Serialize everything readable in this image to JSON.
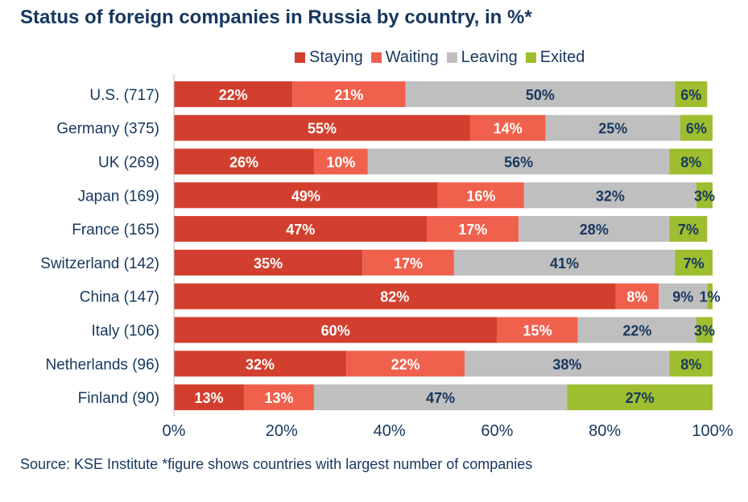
{
  "title": "Status of foreign companies in Russia by country, in %*",
  "source": "Source: KSE Institute *figure shows countries with largest number of companies",
  "chart_data": {
    "type": "bar",
    "orientation": "horizontal",
    "stacked": true,
    "categories": [
      "U.S. (717)",
      "Germany (375)",
      "UK (269)",
      "Japan (169)",
      "France (165)",
      "Switzerland (142)",
      "China (147)",
      "Italy (106)",
      "Netherlands (96)",
      "Finland (90)"
    ],
    "series": [
      {
        "name": "Staying",
        "color": "#d33f2e",
        "label_color": "#ffffff",
        "values": [
          22,
          55,
          26,
          49,
          47,
          35,
          82,
          60,
          32,
          13
        ]
      },
      {
        "name": "Waiting",
        "color": "#f0614d",
        "label_color": "#ffffff",
        "values": [
          21,
          14,
          10,
          16,
          17,
          17,
          8,
          15,
          22,
          13
        ]
      },
      {
        "name": "Leaving",
        "color": "#bfbfbf",
        "label_color": "#17375e",
        "values": [
          50,
          25,
          56,
          32,
          28,
          41,
          9,
          22,
          38,
          47
        ]
      },
      {
        "name": "Exited",
        "color": "#9ebd2f",
        "label_color": "#17375e",
        "values": [
          6,
          6,
          8,
          3,
          7,
          7,
          1,
          3,
          8,
          27
        ]
      }
    ],
    "xlim": [
      0,
      100
    ],
    "x_ticks": [
      "0%",
      "20%",
      "40%",
      "60%",
      "80%",
      "100%"
    ],
    "value_suffix": "%",
    "legend_position": "top",
    "grid": false
  }
}
